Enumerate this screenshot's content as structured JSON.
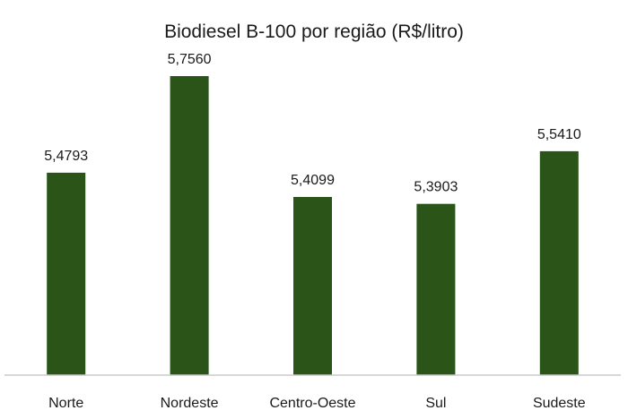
{
  "chart_data": {
    "type": "bar",
    "title": "Biodiesel B-100 por região (R$/litro)",
    "xlabel": "",
    "ylabel": "",
    "categories": [
      "Norte",
      "Nordeste",
      "Centro-Oeste",
      "Sul",
      "Sudeste"
    ],
    "values": [
      5.4793,
      5.756,
      5.4099,
      5.3903,
      5.541
    ],
    "value_labels": [
      "5,4793",
      "5,7560",
      "5,4099",
      "5,3903",
      "5,5410"
    ],
    "ylim": [
      4.9,
      5.8
    ],
    "grid": false,
    "legend": "none",
    "bar_color": "#2a5418",
    "axis_color": "#cccccc"
  }
}
